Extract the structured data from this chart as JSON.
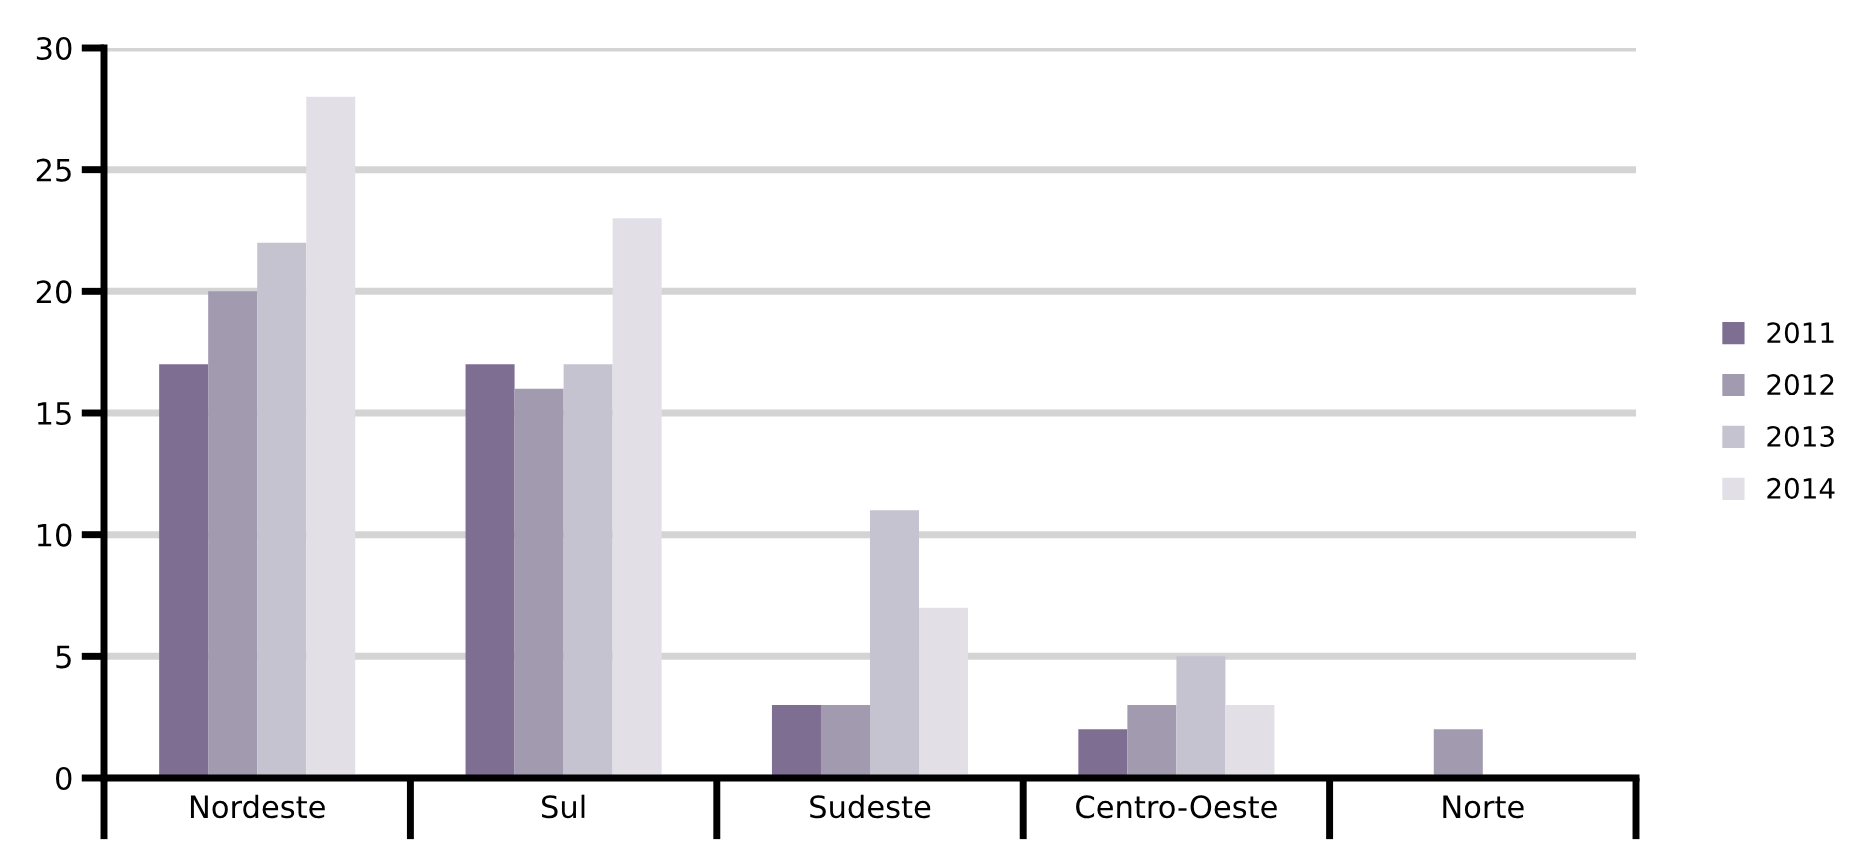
{
  "chart_data": {
    "type": "bar",
    "categories": [
      "Nordeste",
      "Sul",
      "Sudeste",
      "Centro-Oeste",
      "Norte"
    ],
    "series": [
      {
        "name": "2011",
        "color": "#7e6e91",
        "values": [
          17,
          17,
          3,
          2,
          null
        ]
      },
      {
        "name": "2012",
        "color": "#a29aaf",
        "values": [
          20,
          16,
          3,
          3,
          2
        ]
      },
      {
        "name": "2013",
        "color": "#c6c3d0",
        "values": [
          22,
          17,
          11,
          5,
          null
        ]
      },
      {
        "name": "2014",
        "color": "#e2e0e6",
        "values": [
          28,
          23,
          7,
          3,
          null
        ]
      }
    ],
    "ylim": [
      0,
      30
    ],
    "yticks": [
      0,
      5,
      10,
      15,
      20,
      25,
      30
    ],
    "grid": "y",
    "legend": "right"
  }
}
